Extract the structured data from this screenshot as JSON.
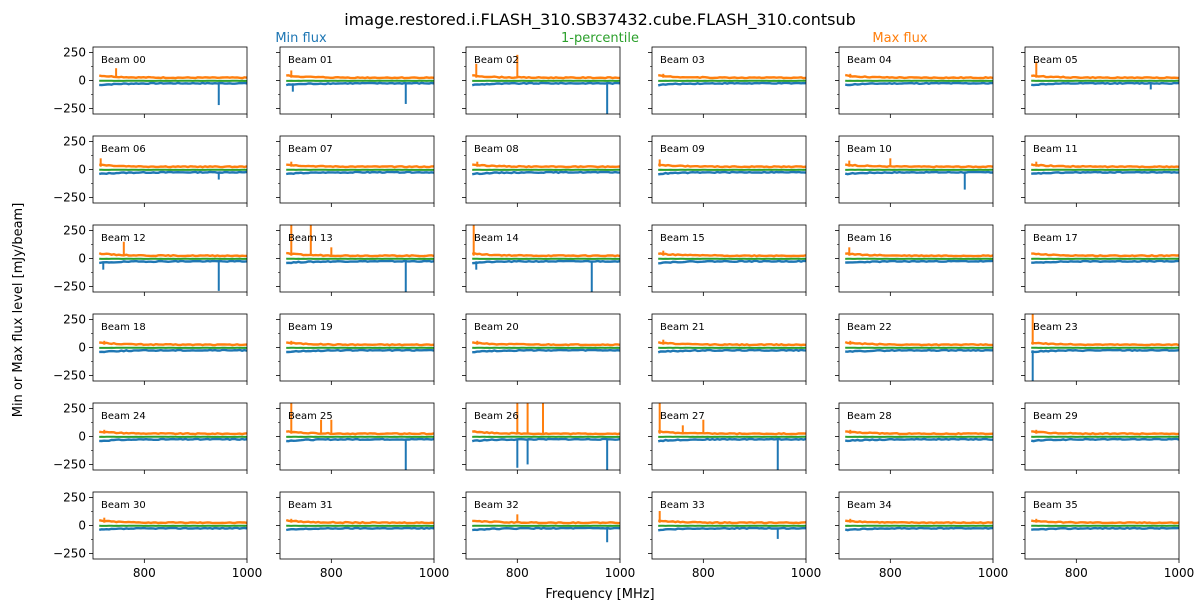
{
  "title": "image.restored.i.FLASH_310.SB37432.cube.FLASH_310.contsub",
  "legend": [
    {
      "name": "Min flux",
      "color": "#1f77b4"
    },
    {
      "name": "1-percentile",
      "color": "#2ca02c"
    },
    {
      "name": "Max flux",
      "color": "#ff7f0e"
    }
  ],
  "xlabel": "Frequency [MHz]",
  "ylabel": "Min or Max flux level [mJy/beam]",
  "chart_data": {
    "type": "line",
    "layout": {
      "rows": 6,
      "cols": 6
    },
    "xlim": [
      700,
      1000
    ],
    "ylim": [
      -300,
      300
    ],
    "x_ticks": [
      800,
      1000
    ],
    "y_ticks": [
      250,
      0,
      -250
    ],
    "grid": false,
    "series_style": {
      "min": "#1f77b4",
      "percentile": "#2ca02c",
      "max": "#ff7f0e"
    },
    "x_range": [
      712,
      1000
    ],
    "baseline": {
      "max": 25,
      "min": -25,
      "percentile": -3
    },
    "panels": [
      {
        "label": "Beam 00",
        "spikes": [
          {
            "s": "min",
            "x": 945,
            "y": -220
          },
          {
            "s": "max",
            "x": 745,
            "y": 110
          }
        ]
      },
      {
        "label": "Beam 01",
        "spikes": [
          {
            "s": "min",
            "x": 945,
            "y": -210
          },
          {
            "s": "min",
            "x": 725,
            "y": -100
          },
          {
            "s": "max",
            "x": 722,
            "y": 90
          }
        ]
      },
      {
        "label": "Beam 02",
        "spikes": [
          {
            "s": "min",
            "x": 975,
            "y": -300
          },
          {
            "s": "max",
            "x": 800,
            "y": 230
          },
          {
            "s": "max",
            "x": 720,
            "y": 150
          }
        ]
      },
      {
        "label": "Beam 03",
        "spikes": [
          {
            "s": "max",
            "x": 722,
            "y": 60
          }
        ]
      },
      {
        "label": "Beam 04",
        "spikes": [
          {
            "s": "max",
            "x": 722,
            "y": 60
          }
        ]
      },
      {
        "label": "Beam 05",
        "spikes": [
          {
            "s": "max",
            "x": 722,
            "y": 170
          },
          {
            "s": "min",
            "x": 945,
            "y": -80
          }
        ]
      },
      {
        "label": "Beam 06",
        "spikes": [
          {
            "s": "max",
            "x": 715,
            "y": 100
          },
          {
            "s": "min",
            "x": 945,
            "y": -90
          }
        ]
      },
      {
        "label": "Beam 07",
        "spikes": [
          {
            "s": "max",
            "x": 722,
            "y": 70
          }
        ]
      },
      {
        "label": "Beam 08",
        "spikes": [
          {
            "s": "max",
            "x": 722,
            "y": 70
          }
        ]
      },
      {
        "label": "Beam 09",
        "spikes": [
          {
            "s": "max",
            "x": 715,
            "y": 90
          }
        ]
      },
      {
        "label": "Beam 10",
        "spikes": [
          {
            "s": "min",
            "x": 945,
            "y": -180
          },
          {
            "s": "max",
            "x": 800,
            "y": 100
          },
          {
            "s": "max",
            "x": 720,
            "y": 80
          }
        ]
      },
      {
        "label": "Beam 11",
        "spikes": [
          {
            "s": "max",
            "x": 722,
            "y": 70
          }
        ]
      },
      {
        "label": "Beam 12",
        "spikes": [
          {
            "s": "min",
            "x": 945,
            "y": -290
          },
          {
            "s": "max",
            "x": 760,
            "y": 150
          },
          {
            "s": "min",
            "x": 720,
            "y": -100
          }
        ]
      },
      {
        "label": "Beam 13",
        "spikes": [
          {
            "s": "max",
            "x": 722,
            "y": 300
          },
          {
            "s": "max",
            "x": 760,
            "y": 300
          },
          {
            "s": "min",
            "x": 945,
            "y": -300
          },
          {
            "s": "max",
            "x": 800,
            "y": 100
          }
        ]
      },
      {
        "label": "Beam 14",
        "spikes": [
          {
            "s": "max",
            "x": 715,
            "y": 300
          },
          {
            "s": "min",
            "x": 945,
            "y": -300
          },
          {
            "s": "min",
            "x": 720,
            "y": -100
          }
        ]
      },
      {
        "label": "Beam 15",
        "spikes": [
          {
            "s": "max",
            "x": 722,
            "y": 70
          }
        ]
      },
      {
        "label": "Beam 16",
        "spikes": [
          {
            "s": "max",
            "x": 720,
            "y": 100
          }
        ]
      },
      {
        "label": "Beam 17",
        "spikes": []
      },
      {
        "label": "Beam 18",
        "spikes": [
          {
            "s": "max",
            "x": 722,
            "y": 60
          }
        ]
      },
      {
        "label": "Beam 19",
        "spikes": [
          {
            "s": "max",
            "x": 722,
            "y": 60
          }
        ]
      },
      {
        "label": "Beam 20",
        "spikes": [
          {
            "s": "max",
            "x": 722,
            "y": 60
          }
        ]
      },
      {
        "label": "Beam 21",
        "spikes": [
          {
            "s": "max",
            "x": 722,
            "y": 70
          }
        ]
      },
      {
        "label": "Beam 22",
        "spikes": [
          {
            "s": "max",
            "x": 722,
            "y": 60
          }
        ]
      },
      {
        "label": "Beam 23",
        "spikes": [
          {
            "s": "max",
            "x": 715,
            "y": 300
          },
          {
            "s": "min",
            "x": 715,
            "y": -300
          }
        ]
      },
      {
        "label": "Beam 24",
        "spikes": [
          {
            "s": "max",
            "x": 722,
            "y": 60
          }
        ]
      },
      {
        "label": "Beam 25",
        "spikes": [
          {
            "s": "max",
            "x": 722,
            "y": 300
          },
          {
            "s": "min",
            "x": 945,
            "y": -300
          },
          {
            "s": "max",
            "x": 780,
            "y": 150
          },
          {
            "s": "max",
            "x": 800,
            "y": 150
          }
        ]
      },
      {
        "label": "Beam 26",
        "spikes": [
          {
            "s": "max",
            "x": 800,
            "y": 300
          },
          {
            "s": "max",
            "x": 820,
            "y": 300
          },
          {
            "s": "max",
            "x": 850,
            "y": 300
          },
          {
            "s": "min",
            "x": 800,
            "y": -280
          },
          {
            "s": "min",
            "x": 820,
            "y": -250
          },
          {
            "s": "min",
            "x": 975,
            "y": -300
          }
        ]
      },
      {
        "label": "Beam 27",
        "spikes": [
          {
            "s": "max",
            "x": 715,
            "y": 300
          },
          {
            "s": "min",
            "x": 945,
            "y": -300
          },
          {
            "s": "max",
            "x": 800,
            "y": 150
          },
          {
            "s": "max",
            "x": 760,
            "y": 100
          }
        ]
      },
      {
        "label": "Beam 28",
        "spikes": [
          {
            "s": "max",
            "x": 722,
            "y": 60
          }
        ]
      },
      {
        "label": "Beam 29",
        "spikes": [
          {
            "s": "max",
            "x": 722,
            "y": 60
          }
        ]
      },
      {
        "label": "Beam 30",
        "spikes": [
          {
            "s": "max",
            "x": 722,
            "y": 70
          }
        ]
      },
      {
        "label": "Beam 31",
        "spikes": [
          {
            "s": "max",
            "x": 722,
            "y": 60
          }
        ]
      },
      {
        "label": "Beam 32",
        "spikes": [
          {
            "s": "max",
            "x": 800,
            "y": 100
          },
          {
            "s": "min",
            "x": 975,
            "y": -150
          }
        ]
      },
      {
        "label": "Beam 33",
        "spikes": [
          {
            "s": "max",
            "x": 715,
            "y": 130
          },
          {
            "s": "min",
            "x": 945,
            "y": -120
          }
        ]
      },
      {
        "label": "Beam 34",
        "spikes": [
          {
            "s": "max",
            "x": 722,
            "y": 60
          }
        ]
      },
      {
        "label": "Beam 35",
        "spikes": [
          {
            "s": "max",
            "x": 722,
            "y": 60
          }
        ]
      }
    ]
  }
}
